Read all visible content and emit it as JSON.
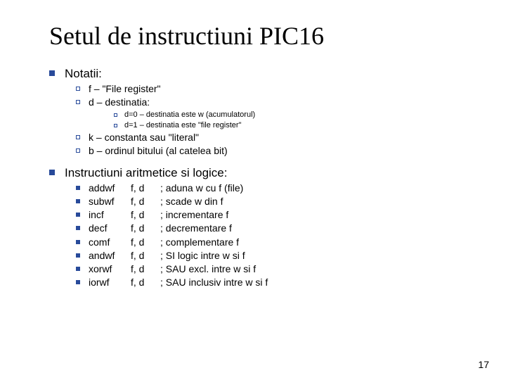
{
  "colors": {
    "bullet": "#284a9a",
    "text": "#000000",
    "background": "#ffffff"
  },
  "title": "Setul de instructiuni PIC16",
  "section1": {
    "heading": "Notatii:",
    "items": [
      {
        "text": "f – \"File register\""
      },
      {
        "text": "d – destinatia:"
      }
    ],
    "subitems": [
      {
        "text": "d=0 – destinatia este w (acumulatorul)"
      },
      {
        "text": "d=1 – destinatia este \"file register\""
      }
    ],
    "items2": [
      {
        "text": "k – constanta sau \"literal\""
      },
      {
        "text": "b – ordinul bitului (al catelea bit)"
      }
    ]
  },
  "section2": {
    "heading": "Instructiuni aritmetice si logice:",
    "rows": [
      {
        "mnemonic": "addwf",
        "args": "f, d",
        "desc": "; aduna w cu f (file)"
      },
      {
        "mnemonic": "subwf",
        "args": "f, d",
        "desc": "; scade w din f"
      },
      {
        "mnemonic": "incf",
        "args": "f, d",
        "desc": "; incrementare f"
      },
      {
        "mnemonic": "decf",
        "args": "f, d",
        "desc": "; decrementare f"
      },
      {
        "mnemonic": "comf",
        "args": "f, d",
        "desc": "; complementare f"
      },
      {
        "mnemonic": "andwf",
        "args": "f, d",
        "desc": "; SI logic intre w si f"
      },
      {
        "mnemonic": "xorwf",
        "args": "f, d",
        "desc": "; SAU excl. intre w si f"
      },
      {
        "mnemonic": "iorwf",
        "args": "f, d",
        "desc": "; SAU inclusiv intre w si f"
      }
    ]
  },
  "page_number": "17"
}
